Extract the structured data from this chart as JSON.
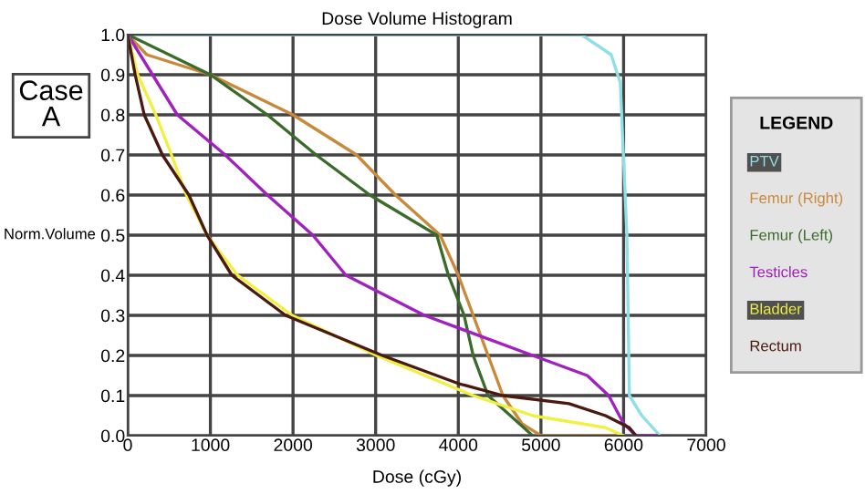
{
  "chart_data": {
    "type": "line",
    "title": "Dose Volume Histogram",
    "xlabel": "Dose (cGy)",
    "ylabel": "Norm.Volume",
    "legend_title": "LEGEND",
    "annotations": [
      "Case\nA"
    ],
    "xlim": [
      0,
      7000
    ],
    "ylim": [
      0,
      1.0
    ],
    "xticks": [
      0,
      1000,
      2000,
      3000,
      4000,
      5000,
      6000,
      7000
    ],
    "yticks": [
      {
        "value": 0,
        "label": "0.0"
      },
      {
        "value": 0.1,
        "label": "0.1"
      },
      {
        "value": 0.2,
        "label": "0.2"
      },
      {
        "value": 0.3,
        "label": "0.3"
      },
      {
        "value": 0.4,
        "label": "0.4"
      },
      {
        "value": 0.5,
        "label": "0.5"
      },
      {
        "value": 0.6,
        "label": "0.6"
      },
      {
        "value": 0.7,
        "label": "0.7"
      },
      {
        "value": 0.8,
        "label": "0.8"
      },
      {
        "value": 0.9,
        "label": "0.9"
      },
      {
        "value": 1.0,
        "label": "1.0"
      }
    ],
    "grid": true,
    "legend": "right",
    "marker": "none",
    "line_style": "solid",
    "series": [
      {
        "name": "PTV",
        "color": "#8ee0e6",
        "x": [
          0,
          5000,
          5490,
          5850,
          5960,
          6040,
          6070,
          6220,
          6440
        ],
        "values": [
          1.0,
          1.0,
          1.0,
          0.95,
          0.88,
          0.5,
          0.1,
          0.05,
          0
        ]
      },
      {
        "name": "Femur (Right)",
        "color": "#c8893a",
        "x": [
          0,
          230,
          1000,
          2000,
          2770,
          3240,
          3780,
          4000,
          4180,
          4360,
          4540,
          4770,
          5000,
          6000
        ],
        "values": [
          1.0,
          0.95,
          0.9,
          0.8,
          0.7,
          0.6,
          0.5,
          0.4,
          0.3,
          0.2,
          0.1,
          0.03,
          0,
          0
        ]
      },
      {
        "name": "Femur (Left)",
        "color": "#3a6b2a",
        "x": [
          0,
          1000,
          1690,
          2280,
          2930,
          3740,
          3880,
          4070,
          4180,
          4360,
          4900
        ],
        "values": [
          1.0,
          0.9,
          0.8,
          0.7,
          0.6,
          0.5,
          0.4,
          0.3,
          0.2,
          0.1,
          0
        ]
      },
      {
        "name": "Testicles",
        "color": "#a020c0",
        "x": [
          0,
          300,
          600,
          1180,
          1690,
          2240,
          2640,
          3590,
          4900,
          5560,
          5820,
          6000,
          6150,
          6400
        ],
        "values": [
          1.0,
          0.9,
          0.8,
          0.7,
          0.6,
          0.5,
          0.4,
          0.3,
          0.2,
          0.15,
          0.1,
          0.03,
          0,
          0
        ]
      },
      {
        "name": "Bladder",
        "color": "#f0f040",
        "x": [
          0,
          120,
          340,
          530,
          710,
          960,
          1330,
          1990,
          3010,
          4180,
          4900,
          5780,
          6000
        ],
        "values": [
          1.0,
          0.9,
          0.8,
          0.7,
          0.6,
          0.5,
          0.4,
          0.3,
          0.2,
          0.1,
          0.05,
          0.02,
          0
        ]
      },
      {
        "name": "Rectum",
        "color": "#4a1a10",
        "x": [
          0,
          90,
          200,
          420,
          740,
          960,
          1260,
          1910,
          3080,
          4000,
          4540,
          5340,
          5780,
          6070,
          6150
        ],
        "values": [
          1.0,
          0.9,
          0.8,
          0.7,
          0.6,
          0.5,
          0.4,
          0.3,
          0.2,
          0.13,
          0.1,
          0.08,
          0.05,
          0.02,
          0
        ]
      }
    ]
  }
}
